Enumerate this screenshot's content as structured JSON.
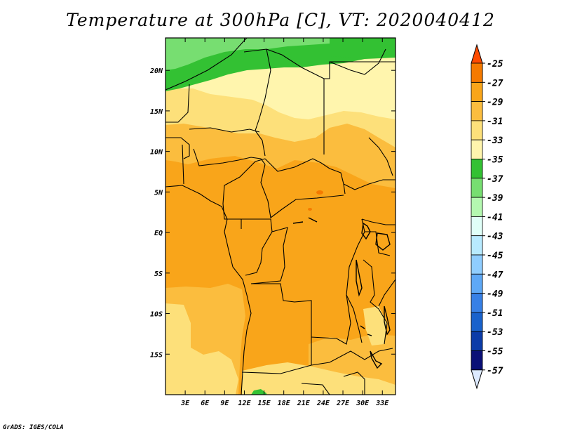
{
  "title": "Temperature at 300hPa [C], VT: 2020040412",
  "credit": "GrADS: IGES/COLA",
  "map": {
    "lat_labels": [
      "20N",
      "15N",
      "10N",
      "5N",
      "EQ",
      "5S",
      "10S",
      "15S"
    ],
    "lon_labels": [
      "3E",
      "6E",
      "9E",
      "12E",
      "15E",
      "18E",
      "21E",
      "24E",
      "27E",
      "30E",
      "33E"
    ],
    "extent": {
      "lon": [
        0,
        35
      ],
      "lat": [
        -20,
        24
      ]
    }
  },
  "colorbar": {
    "labels": [
      "-25",
      "-27",
      "-29",
      "-31",
      "-33",
      "-35",
      "-37",
      "-39",
      "-41",
      "-43",
      "-45",
      "-47",
      "-49",
      "-51",
      "-53",
      "-55",
      "-57"
    ],
    "colors": [
      "#e63c14",
      "#f57a00",
      "#f9a51a",
      "#fbbd3e",
      "#fde07a",
      "#fff5ad",
      "#33c133",
      "#77de71",
      "#b4f8b0",
      "#e0fff8",
      "#b8eaff",
      "#8fcdff",
      "#5ea8f6",
      "#3780e6",
      "#1962cc",
      "#0c3ca8",
      "#0a1077"
    ],
    "top_color": "#ff4b00",
    "bottom_color": "#ddeaff"
  }
}
